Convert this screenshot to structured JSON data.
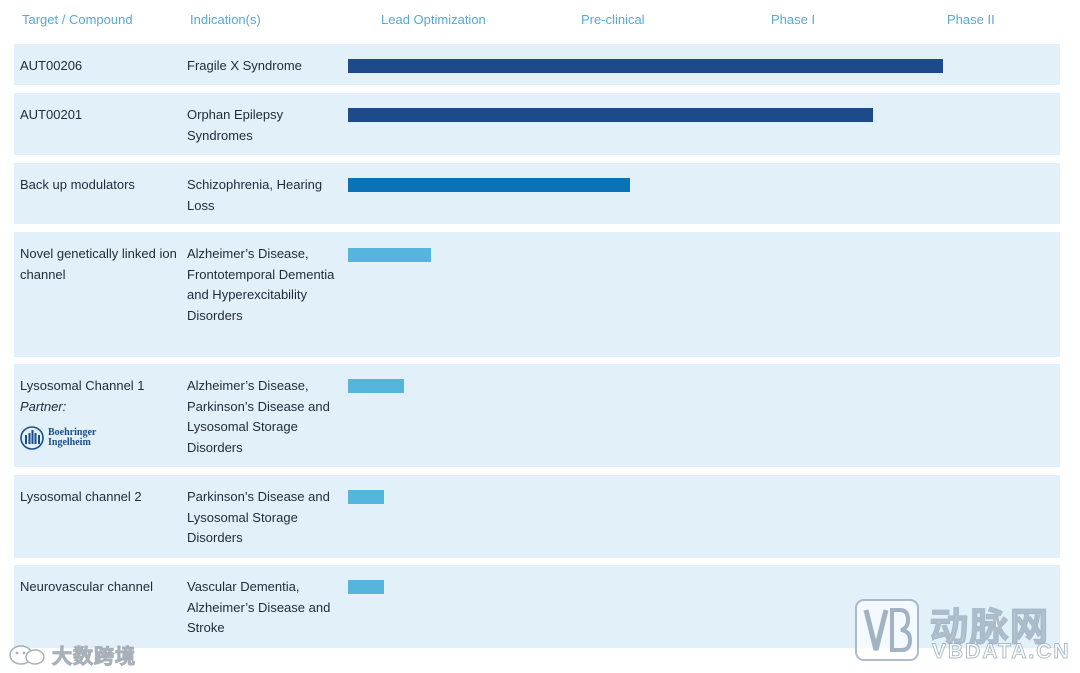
{
  "columns": {
    "target": "Target / Compound",
    "indication": "Indication(s)",
    "phases": [
      "Lead Optimization",
      "Pre-clinical",
      "Phase I",
      "Phase II"
    ]
  },
  "colors": {
    "header_text": "#58a9d3",
    "row_bg": "#e1f0f9",
    "bar_dark": "#1d4a8a",
    "bar_mid": "#0a73b7",
    "bar_light": "#55b5dc"
  },
  "partner_logo": {
    "line1": "Boehringer",
    "line2": "Ingelheim"
  },
  "watermarks": {
    "left_text": "大数跨境",
    "right_cn": "动脉网",
    "right_en": "VBDATA.CN"
  },
  "chart_data": {
    "type": "bar",
    "orientation": "horizontal",
    "title": "",
    "xlabel": "",
    "ylabel": "",
    "stages": [
      "Lead Optimization",
      "Pre-clinical",
      "Phase I",
      "Phase II"
    ],
    "rows": [
      {
        "target": "AUT00206",
        "indication": "Fragile X Syndrome",
        "progress": 0.93,
        "color": "#1d4a8a",
        "partner_label": ""
      },
      {
        "target": "AUT00201",
        "indication": "Orphan Epilepsy Syndromes",
        "progress": 0.82,
        "color": "#1d4a8a",
        "partner_label": ""
      },
      {
        "target": "Back up modulators",
        "indication": "Schizophrenia, Hearing Loss",
        "progress": 0.44,
        "color": "#0a73b7",
        "partner_label": ""
      },
      {
        "target": "Novel genetically linked ion channel",
        "indication": "Alzheimer’s Disease, Frontotemporal Dementia and Hyperexcitability Disorders",
        "progress": 0.13,
        "color": "#55b5dc",
        "partner_label": ""
      },
      {
        "target": "Lysosomal Channel 1",
        "indication": "Alzheimer’s Disease, Parkinson’s Disease and Lysosomal Storage Disorders",
        "progress": 0.087,
        "color": "#55b5dc",
        "partner_label": "Partner:"
      },
      {
        "target": "Lysosomal channel 2",
        "indication": "Parkinson’s Disease and Lysosomal Storage Disorders",
        "progress": 0.056,
        "color": "#55b5dc",
        "partner_label": ""
      },
      {
        "target": "Neurovascular channel",
        "indication": "Vascular Dementia, Alzheimer’s Disease and Stroke",
        "progress": 0.056,
        "color": "#55b5dc",
        "partner_label": ""
      }
    ]
  }
}
